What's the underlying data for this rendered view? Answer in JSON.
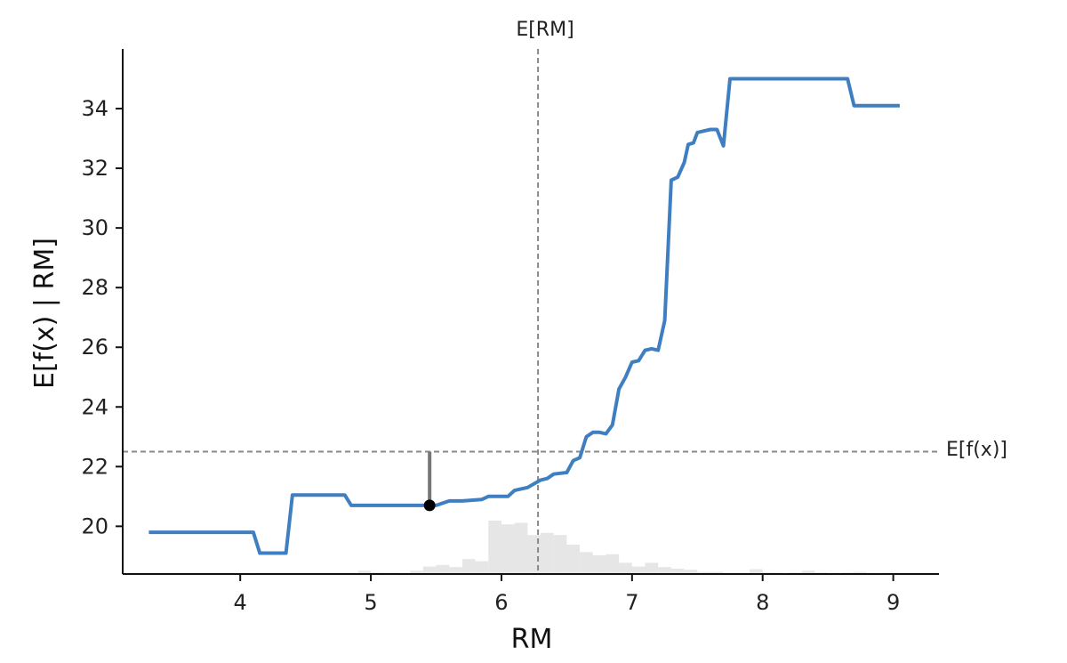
{
  "chart_data": {
    "type": "line",
    "xlabel": "RM",
    "ylabel": "E[f(x) | RM]",
    "xlim": [
      3.1,
      9.35
    ],
    "ylim": [
      18.4,
      36.0
    ],
    "x_ticks": [
      4,
      5,
      6,
      7,
      8,
      9
    ],
    "y_ticks": [
      20,
      22,
      24,
      26,
      28,
      30,
      32,
      34
    ],
    "grid": false,
    "reference_lines": {
      "vertical": {
        "x": 6.28,
        "label": "E[RM]"
      },
      "horizontal": {
        "y": 22.5,
        "label": "E[f(x)]"
      }
    },
    "series": [
      {
        "color": "#3f7fc1",
        "x": [
          3.3,
          4.1,
          4.15,
          4.35,
          4.4,
          4.8,
          4.85,
          4.9,
          5.5,
          5.6,
          5.7,
          5.85,
          5.9,
          6.05,
          6.1,
          6.2,
          6.3,
          6.35,
          6.4,
          6.5,
          6.55,
          6.6,
          6.65,
          6.7,
          6.75,
          6.8,
          6.85,
          6.9,
          6.95,
          7.0,
          7.05,
          7.1,
          7.15,
          7.2,
          7.25,
          7.3,
          7.35,
          7.4,
          7.43,
          7.47,
          7.5,
          7.55,
          7.6,
          7.65,
          7.7,
          7.75,
          7.8,
          7.85,
          7.9,
          7.95,
          8.0,
          8.03,
          8.08,
          8.1,
          8.2,
          8.65,
          8.7,
          9.05
        ],
        "y": [
          19.8,
          19.8,
          19.1,
          19.1,
          21.05,
          21.05,
          20.7,
          20.7,
          20.7,
          20.85,
          20.85,
          20.9,
          21.0,
          21.0,
          21.2,
          21.3,
          21.55,
          21.6,
          21.75,
          21.8,
          22.2,
          22.3,
          23.0,
          23.15,
          23.15,
          23.1,
          23.4,
          24.6,
          25.0,
          25.5,
          25.55,
          25.9,
          25.95,
          25.9,
          26.9,
          31.6,
          31.7,
          32.2,
          32.8,
          32.85,
          33.2,
          33.25,
          33.3,
          33.3,
          32.75,
          35.0,
          35.0,
          35.0,
          35.0,
          35.0,
          35.0,
          35.0,
          35.0,
          35.0,
          35.0,
          35.0,
          34.1,
          34.1
        ]
      }
    ],
    "highlight_point": {
      "x": 5.45,
      "y": 20.7
    },
    "histogram": {
      "color": "#e6e6e6",
      "bin_width": 0.1,
      "bins": [
        [
          4.0,
          0.02
        ],
        [
          4.1,
          0.0
        ],
        [
          4.9,
          0.06
        ],
        [
          5.0,
          0.03
        ],
        [
          5.2,
          0.02
        ],
        [
          5.3,
          0.06
        ],
        [
          5.4,
          0.14
        ],
        [
          5.5,
          0.17
        ],
        [
          5.6,
          0.13
        ],
        [
          5.7,
          0.28
        ],
        [
          5.8,
          0.24
        ],
        [
          5.9,
          1.0
        ],
        [
          6.0,
          0.93
        ],
        [
          6.1,
          0.96
        ],
        [
          6.2,
          0.73
        ],
        [
          6.3,
          0.77
        ],
        [
          6.4,
          0.73
        ],
        [
          6.5,
          0.55
        ],
        [
          6.6,
          0.41
        ],
        [
          6.7,
          0.35
        ],
        [
          6.8,
          0.37
        ],
        [
          6.9,
          0.21
        ],
        [
          7.0,
          0.14
        ],
        [
          7.1,
          0.21
        ],
        [
          7.2,
          0.13
        ],
        [
          7.3,
          0.1
        ],
        [
          7.4,
          0.08
        ],
        [
          7.5,
          0.04
        ],
        [
          7.6,
          0.04
        ],
        [
          7.7,
          0.02
        ],
        [
          7.8,
          0.02
        ],
        [
          7.9,
          0.09
        ],
        [
          8.0,
          0.03
        ],
        [
          8.2,
          0.03
        ],
        [
          8.3,
          0.06
        ],
        [
          8.4,
          0.03
        ],
        [
          8.6,
          0.03
        ],
        [
          8.7,
          0.04
        ],
        [
          8.8,
          0.02
        ]
      ]
    }
  }
}
